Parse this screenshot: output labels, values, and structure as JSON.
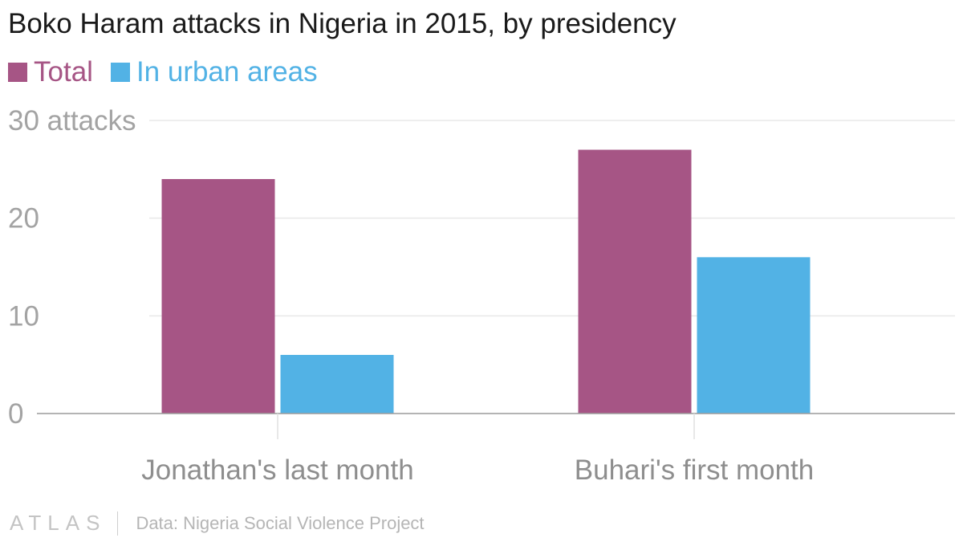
{
  "chart_data": {
    "type": "bar",
    "title": "Boko Haram attacks in Nigeria in 2015, by presidency",
    "categories": [
      "Jonathan's last month",
      "Buhari's first month"
    ],
    "series": [
      {
        "name": "Total",
        "color": "#a65585",
        "values": [
          24,
          27
        ]
      },
      {
        "name": "In urban areas",
        "color": "#52b2e5",
        "values": [
          6,
          16
        ]
      }
    ],
    "y_ticks": [
      {
        "value": 0,
        "label": "0"
      },
      {
        "value": 10,
        "label": "10"
      },
      {
        "value": 20,
        "label": "20"
      },
      {
        "value": 30,
        "label": "30 attacks"
      }
    ],
    "ylim": [
      0,
      30
    ],
    "xlabel": "",
    "ylabel": "",
    "grid": true,
    "legend_position": "top-left"
  },
  "footer": {
    "logo": "ATLAS",
    "source": "Data: Nigeria Social Violence Project"
  }
}
